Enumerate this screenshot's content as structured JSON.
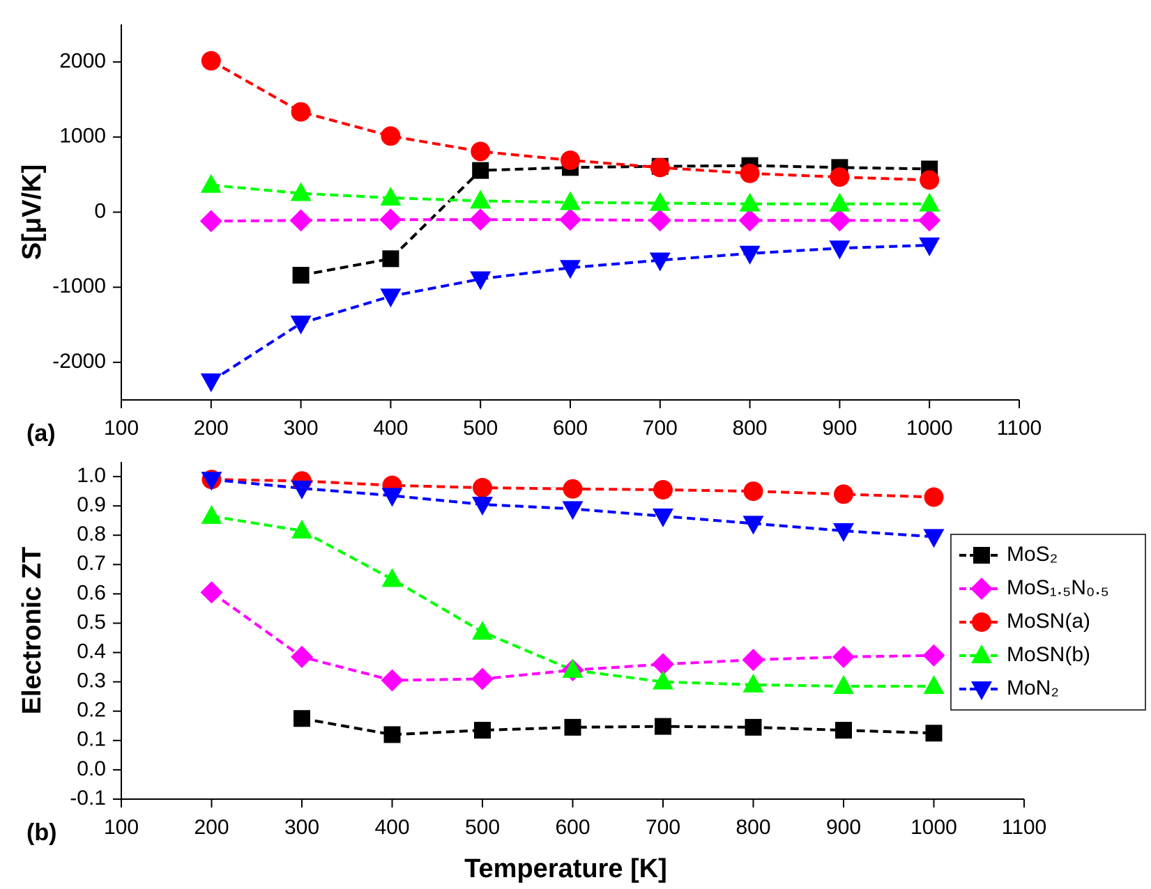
{
  "chart_data": [
    {
      "type": "line",
      "ylabel": "S[μV/K]",
      "annotation": "(a)",
      "x": [
        200,
        300,
        400,
        500,
        600,
        700,
        800,
        900,
        1000
      ],
      "xlim": [
        100,
        1100
      ],
      "xticks": [
        100,
        200,
        300,
        400,
        500,
        600,
        700,
        800,
        900,
        1000,
        1100
      ],
      "ylim": [
        -2500,
        2500
      ],
      "yticks": [
        -2000,
        -1000,
        0,
        1000,
        2000
      ],
      "series": [
        {
          "name": "MoS₂",
          "color": "#000000",
          "marker": "square",
          "values": [
            null,
            -840,
            -620,
            555,
            595,
            610,
            620,
            595,
            575
          ]
        },
        {
          "name": "MoS₁.₅N₀.₅",
          "color": "#ff00ff",
          "marker": "diamond",
          "values": [
            -120,
            -110,
            -100,
            -100,
            -100,
            -110,
            -110,
            -110,
            -110
          ]
        },
        {
          "name": "MoSN(a)",
          "color": "#ff0000",
          "marker": "circle",
          "values": [
            2015,
            1335,
            1013,
            808,
            691,
            594,
            516,
            467,
            428
          ]
        },
        {
          "name": "MoSN(b)",
          "color": "#00ff00",
          "marker": "triangle-up",
          "values": [
            360,
            250,
            190,
            150,
            130,
            120,
            110,
            110,
            110
          ]
        },
        {
          "name": "MoN₂",
          "color": "#0000ff",
          "marker": "triangle-down",
          "values": [
            -2250,
            -1480,
            -1120,
            -890,
            -740,
            -640,
            -550,
            -480,
            -440
          ]
        }
      ]
    },
    {
      "type": "line",
      "ylabel": "Electronic ZT",
      "xlabel": "Temperature [K]",
      "annotation": "(b)",
      "legend": "right",
      "x": [
        200,
        300,
        400,
        500,
        600,
        700,
        800,
        900,
        1000
      ],
      "xlim": [
        100,
        1100
      ],
      "xticks": [
        100,
        200,
        300,
        400,
        500,
        600,
        700,
        800,
        900,
        1000,
        1100
      ],
      "ylim": [
        -0.1,
        1.05
      ],
      "yticks": [
        -0.1,
        {
          "value": 0,
          "label": "0.0"
        },
        0.1,
        0.2,
        0.3,
        0.4,
        0.5,
        0.6,
        0.7,
        0.8,
        0.9,
        {
          "value": 1,
          "label": "1.0"
        }
      ],
      "series": [
        {
          "name": "MoS₂",
          "color": "#000000",
          "marker": "square",
          "values": [
            null,
            0.175,
            0.12,
            0.135,
            0.145,
            0.148,
            0.145,
            0.135,
            0.125
          ]
        },
        {
          "name": "MoS₁.₅N₀.₅",
          "color": "#ff00ff",
          "marker": "diamond",
          "values": [
            0.605,
            0.385,
            0.305,
            0.31,
            0.34,
            0.36,
            0.375,
            0.385,
            0.39
          ]
        },
        {
          "name": "MoSN(a)",
          "color": "#ff0000",
          "marker": "circle",
          "values": [
            0.99,
            0.985,
            0.97,
            0.962,
            0.958,
            0.955,
            0.95,
            0.94,
            0.93
          ]
        },
        {
          "name": "MoSN(b)",
          "color": "#00ff00",
          "marker": "triangle-up",
          "values": [
            0.865,
            0.815,
            0.65,
            0.47,
            0.34,
            0.3,
            0.29,
            0.285,
            0.285
          ]
        },
        {
          "name": "MoN₂",
          "color": "#0000ff",
          "marker": "triangle-down",
          "values": [
            0.99,
            0.96,
            0.935,
            0.905,
            0.89,
            0.865,
            0.84,
            0.815,
            0.795
          ]
        }
      ]
    }
  ]
}
